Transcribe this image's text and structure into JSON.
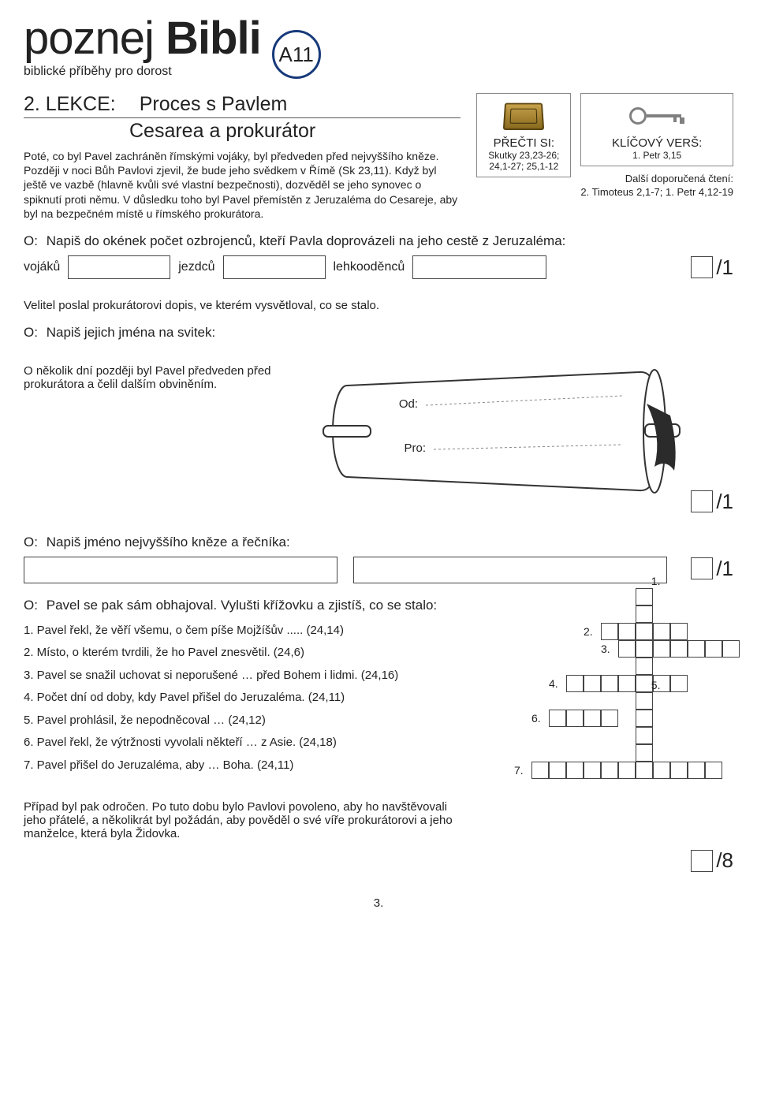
{
  "header": {
    "title_light": "poznej",
    "title_bold": "Bibli",
    "subtitle": "biblické příběhy pro dorost",
    "badge": "A11"
  },
  "lesson": {
    "label": "2. LEKCE:",
    "title": "Proces s Pavlem",
    "subtitle": "Cesarea a prokurátor"
  },
  "intro": "Poté, co byl Pavel zachráněn římskými vojáky, byl předveden před nejvyššího kněze. Později v noci Bůh Pavlovi zjevil, že bude jeho svědkem v Římě (Sk 23,11). Když byl ještě ve vazbě (hlavně kvůli své vlastní bezpečnosti), dozvěděl se jeho synovec o spiknutí proti němu. V důsledku toho byl Pavel přemístěn z Jeruzaléma do Cesareje, aby byl na bezpečném místě u římského prokurátora.",
  "readbox": {
    "label": "PŘEČTI SI:",
    "refs": "Skutky 23,23-26;\n24,1-27; 25,1-12"
  },
  "keyvbox": {
    "label": "KLÍČOVÝ VERŠ:",
    "ref": "1. Petr 3,15"
  },
  "morerefs": {
    "label": "Další doporučená čtení:",
    "refs": "2. Timoteus 2,1-7;  1. Petr 4,12-19"
  },
  "q1": {
    "prompt": "Napiš do okének počet ozbrojenců, kteří Pavla doprovázeli na jeho cestě z Jeruzaléma:",
    "l1": "vojáků",
    "l2": "jezdců",
    "l3": "lehkooděnců",
    "score": "/1"
  },
  "p2": "Velitel poslal prokurátorovi dopis, ve kterém vysvětloval, co se stalo.",
  "q2": {
    "prompt": "Napiš jejich jména na svitek:",
    "from": "Od:",
    "to": "Pro:",
    "score": "/1"
  },
  "p3": "O několik dní později byl Pavel předveden před prokurátora a čelil dalším obviněním.",
  "q3": {
    "prompt": "Napiš jméno nejvyššího kněze a řečníka:",
    "score": "/1"
  },
  "q4": {
    "prompt": "Pavel se pak sám obhajoval. Vylušti křížovku a zjistíš, co se stalo:",
    "clues": [
      "1. Pavel řekl, že věří všemu, o čem píše Mojžíšův ..... (24,14)",
      "2. Místo, o kterém tvrdili, že ho Pavel znesvětil. (24,6)",
      "3. Pavel se snažil uchovat si neporušené … před Bohem i lidmi. (24,16)",
      "4. Počet dní od doby, kdy Pavel přišel do Jeruzaléma. (24,11)",
      "5. Pavel prohlásil, že nepodněcoval  … (24,12)",
      "6. Pavel řekl, že výtržnosti vyvolali někteří … z Asie. (24,18)",
      "7. Pavel přišel do Jeruzaléma, aby … Boha. (24,11)"
    ]
  },
  "p4": "Případ byl pak odročen. Po tuto dobu bylo Pavlovi povoleno, aby ho navštěvovali jeho přátelé, a několikrát byl požádán, aby pověděl o své víře prokurátorovi a jeho manželce, která byla Židovka.",
  "score8": "/8",
  "pagenum": "3.",
  "crossword": {
    "cell_size": 22,
    "words": [
      {
        "n": "1",
        "r": 0,
        "c": 8,
        "dir": "v",
        "len": 5
      },
      {
        "n": "2",
        "r": 2,
        "c": 6,
        "dir": "h",
        "len": 5
      },
      {
        "n": "3",
        "r": 3,
        "c": 7,
        "dir": "h",
        "len": 7
      },
      {
        "n": "4",
        "r": 5,
        "c": 4,
        "dir": "h",
        "len": 7
      },
      {
        "n": "5",
        "r": 6,
        "c": 8,
        "dir": "v",
        "len": 4
      },
      {
        "n": "6",
        "r": 7,
        "c": 3,
        "dir": "h",
        "len": 4
      },
      {
        "n": "7",
        "r": 10,
        "c": 2,
        "dir": "h",
        "len": 11
      }
    ]
  }
}
